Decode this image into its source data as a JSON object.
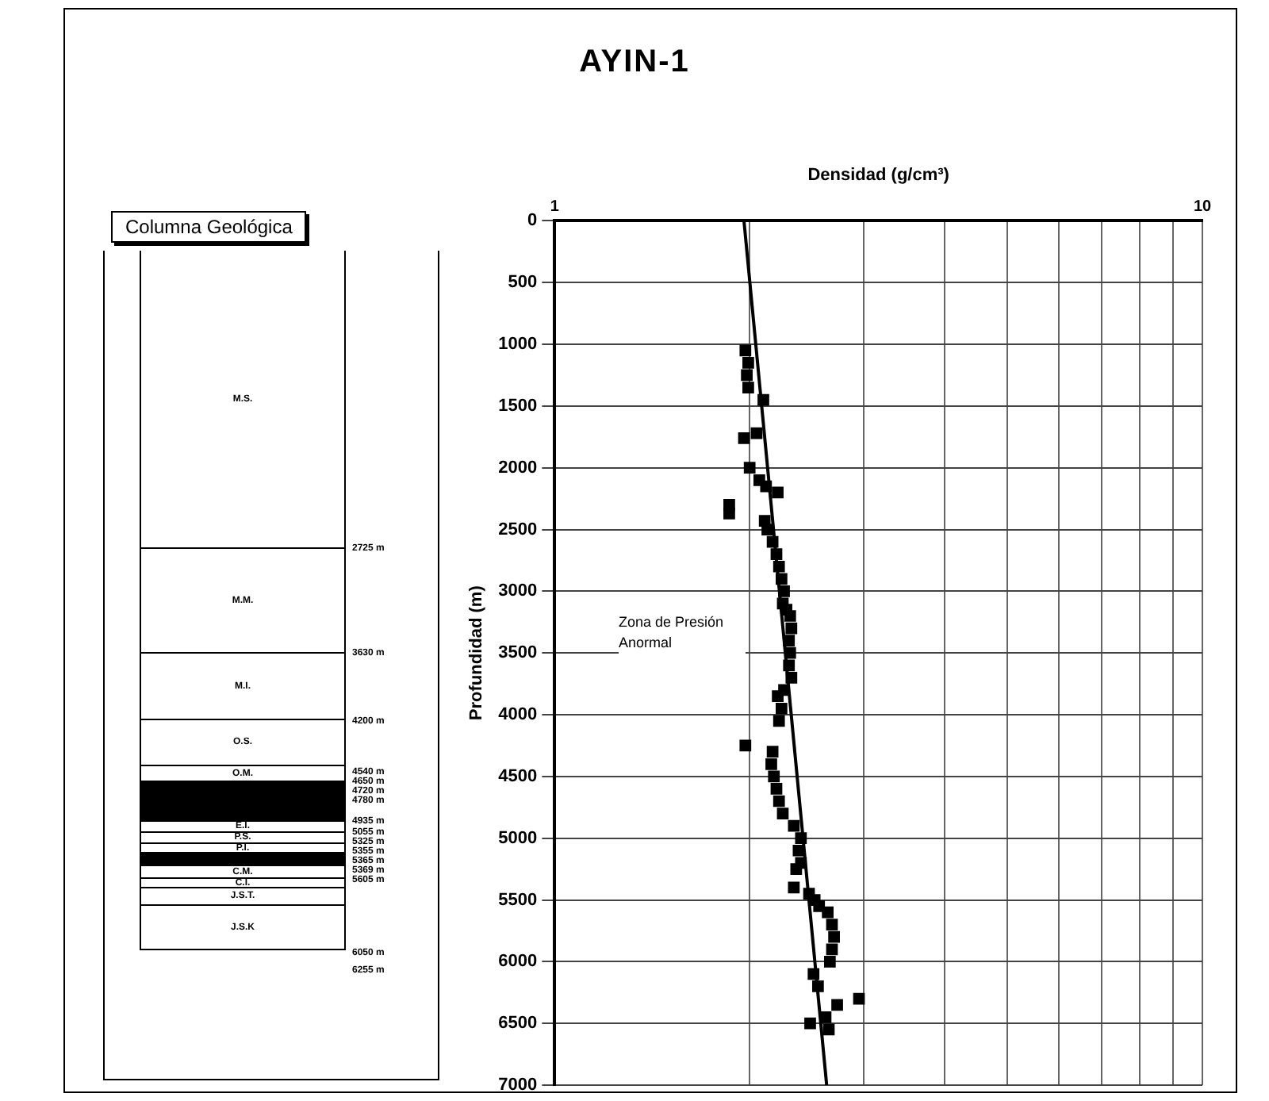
{
  "chart_data": [
    {
      "type": "other",
      "title": "Columna Geológica",
      "categories": [
        "M.S.",
        "M.M.",
        "M.I.",
        "O.S.",
        "O.M.",
        null,
        "E.I.",
        "P.S.",
        "P.I.",
        null,
        "C.M.",
        "C.I.",
        "J.S.T.",
        "J.S.K"
      ],
      "colors": [
        "#ffffff",
        "#ffffff",
        "#ffffff",
        "#ffffff",
        "#ffffff",
        "#000000",
        "#ffffff",
        "#ffffff",
        "#ffffff",
        "#000000",
        "#ffffff",
        "#ffffff",
        "#ffffff",
        "#ffffff"
      ],
      "annotations": [
        "2725 m",
        "3630 m",
        "4200 m",
        "4540 m",
        "4650 m",
        "4720 m",
        "4780 m",
        "4935 m",
        "5055 m",
        "5325 m",
        "5355 m",
        "5365 m",
        "5369 m",
        "5605 m",
        "6050 m",
        "6255 m"
      ]
    },
    {
      "type": "scatter",
      "title": "AYIN-1",
      "xlabel": "Densidad (g/cm³)",
      "ylabel": "Profundidad (m)",
      "log": "x",
      "xlim": [
        1,
        10
      ],
      "xticks": [
        1,
        {
          "value": 2,
          "label": null
        },
        {
          "value": 3,
          "label": null
        },
        {
          "value": 4,
          "label": null
        },
        {
          "value": 5,
          "label": null
        },
        {
          "value": 6,
          "label": null
        },
        {
          "value": 7,
          "label": null
        },
        {
          "value": 8,
          "label": null
        },
        {
          "value": 9,
          "label": null
        },
        10
      ],
      "ylim": [
        7000,
        0
      ],
      "yticks": [
        0,
        500,
        1000,
        1500,
        2000,
        2500,
        3000,
        3500,
        4000,
        4500,
        5000,
        5500,
        6000,
        6500,
        7000
      ],
      "grid": true,
      "legend": false,
      "marker": "square",
      "annotations": [
        "Zona de Presión Anormal"
      ],
      "series": [
        {
          "color": "#000000",
          "x": [
            1.97,
            1.99,
            1.98,
            1.99,
            2.1,
            2.05,
            1.96,
            2.0,
            2.07,
            2.12,
            2.21,
            1.86,
            1.86,
            2.11,
            2.13,
            2.17,
            2.2,
            2.22,
            2.24,
            2.26,
            2.25,
            2.28,
            2.31,
            2.32,
            2.3,
            2.31,
            2.3,
            2.32,
            2.26,
            2.21,
            2.24,
            2.22,
            1.97,
            2.17,
            2.16,
            2.18,
            2.2,
            2.22,
            2.25,
            2.34,
            2.4,
            2.38,
            2.4,
            2.36,
            2.34,
            2.47,
            2.52,
            2.56,
            2.64,
            2.68,
            2.7,
            2.68,
            2.66,
            2.51,
            2.55,
            2.95,
            2.73,
            2.62,
            2.48,
            2.65
          ],
          "values": [
            1050,
            1150,
            1250,
            1350,
            1450,
            1720,
            1760,
            2000,
            2100,
            2150,
            2200,
            2300,
            2370,
            2430,
            2500,
            2600,
            2700,
            2800,
            2900,
            3000,
            3100,
            3150,
            3200,
            3300,
            3400,
            3500,
            3600,
            3700,
            3800,
            3850,
            3950,
            4050,
            4250,
            4300,
            4400,
            4500,
            4600,
            4700,
            4800,
            4900,
            5000,
            5100,
            5200,
            5250,
            5400,
            5450,
            5500,
            5550,
            5600,
            5700,
            5800,
            5900,
            6000,
            6100,
            6200,
            6300,
            6350,
            6450,
            6500,
            6550
          ]
        },
        {
          "type": "line",
          "color": "#000000",
          "marker": "none",
          "x": [
            1.96,
            2.63
          ],
          "values": [
            0,
            7000
          ]
        }
      ]
    }
  ]
}
